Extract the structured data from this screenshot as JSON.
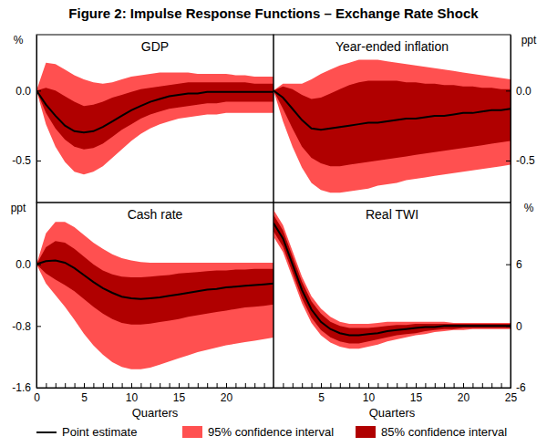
{
  "title": "Figure 2: Impulse Response Functions – Exchange Rate Shock",
  "chart_data": [
    {
      "type": "line",
      "title": "GDP",
      "ylabel": "%",
      "tick_labels": "y",
      "legend": "bottom",
      "x": [
        0,
        1,
        2,
        3,
        4,
        5,
        6,
        7,
        8,
        9,
        10,
        11,
        12,
        13,
        14,
        15,
        16,
        17,
        18,
        19,
        20,
        21,
        22,
        23,
        24,
        25
      ],
      "xlim": [
        0,
        25
      ],
      "ylim": [
        -0.8,
        0.4
      ],
      "yticks": [
        -0.5,
        {
          "value": 0,
          "label": "0.0"
        }
      ],
      "series": [
        {
          "name": "Point estimate",
          "type": "line",
          "color": "#000000",
          "values": [
            0,
            -0.1,
            -0.18,
            -0.25,
            -0.29,
            -0.3,
            -0.29,
            -0.26,
            -0.22,
            -0.18,
            -0.14,
            -0.11,
            -0.08,
            -0.06,
            -0.04,
            -0.03,
            -0.02,
            -0.02,
            -0.01,
            -0.01,
            -0.01,
            -0.01,
            -0.01,
            -0.01,
            -0.01,
            -0.01
          ]
        },
        {
          "name": "95% confidence interval",
          "type": "area",
          "color": "#ff5050",
          "lower": [
            0,
            -0.24,
            -0.4,
            -0.51,
            -0.58,
            -0.6,
            -0.58,
            -0.54,
            -0.48,
            -0.42,
            -0.36,
            -0.31,
            -0.27,
            -0.24,
            -0.22,
            -0.2,
            -0.19,
            -0.18,
            -0.17,
            -0.17,
            -0.16,
            -0.16,
            -0.16,
            -0.16,
            -0.16,
            -0.16
          ],
          "upper": [
            0,
            0.2,
            0.19,
            0.15,
            0.11,
            0.08,
            0.06,
            0.05,
            0.06,
            0.08,
            0.1,
            0.11,
            0.12,
            0.13,
            0.13,
            0.13,
            0.13,
            0.12,
            0.12,
            0.12,
            0.12,
            0.11,
            0.11,
            0.1,
            0.1,
            0.1
          ]
        },
        {
          "name": "85% confidence interval",
          "type": "area",
          "color": "#b00000",
          "lower": [
            0,
            -0.16,
            -0.27,
            -0.35,
            -0.4,
            -0.42,
            -0.41,
            -0.38,
            -0.33,
            -0.28,
            -0.24,
            -0.2,
            -0.17,
            -0.15,
            -0.13,
            -0.12,
            -0.11,
            -0.1,
            -0.09,
            -0.09,
            -0.08,
            -0.08,
            -0.08,
            -0.08,
            -0.08,
            -0.08
          ],
          "upper": [
            0,
            0.02,
            0,
            -0.04,
            -0.08,
            -0.11,
            -0.1,
            -0.08,
            -0.05,
            -0.03,
            -0.01,
            0.01,
            0.02,
            0.03,
            0.04,
            0.05,
            0.06,
            0.06,
            0.06,
            0.06,
            0.06,
            0.06,
            0.06,
            0.05,
            0.05,
            0.05
          ]
        }
      ]
    },
    {
      "type": "line",
      "title": "Year-ended inflation",
      "y2label": "ppt",
      "tick_labels": "y",
      "x": [
        0,
        1,
        2,
        3,
        4,
        5,
        6,
        7,
        8,
        9,
        10,
        11,
        12,
        13,
        14,
        15,
        16,
        17,
        18,
        19,
        20,
        21,
        22,
        23,
        24,
        25
      ],
      "xlim": [
        0,
        25
      ],
      "y2lim": [
        -0.8,
        0.4
      ],
      "y2ticks": [
        -0.5,
        {
          "value": 0,
          "label": "0.0"
        }
      ],
      "series": [
        {
          "name": "Point estimate",
          "type": "line",
          "color": "#000000",
          "axis": "y2",
          "values": [
            0,
            -0.05,
            -0.13,
            -0.21,
            -0.27,
            -0.28,
            -0.27,
            -0.26,
            -0.25,
            -0.24,
            -0.23,
            -0.23,
            -0.22,
            -0.21,
            -0.2,
            -0.2,
            -0.19,
            -0.18,
            -0.18,
            -0.17,
            -0.16,
            -0.16,
            -0.15,
            -0.14,
            -0.14,
            -0.13
          ]
        },
        {
          "name": "95% confidence interval",
          "type": "area",
          "color": "#ff5050",
          "axis": "y2",
          "lower": [
            0,
            -0.22,
            -0.4,
            -0.55,
            -0.66,
            -0.71,
            -0.73,
            -0.73,
            -0.72,
            -0.71,
            -0.7,
            -0.68,
            -0.67,
            -0.66,
            -0.64,
            -0.63,
            -0.62,
            -0.61,
            -0.6,
            -0.59,
            -0.58,
            -0.57,
            -0.56,
            -0.55,
            -0.54,
            -0.53
          ],
          "upper": [
            0,
            0.05,
            0.05,
            0.05,
            0.08,
            0.12,
            0.15,
            0.18,
            0.2,
            0.22,
            0.22,
            0.22,
            0.21,
            0.2,
            0.19,
            0.18,
            0.17,
            0.16,
            0.15,
            0.14,
            0.13,
            0.12,
            0.11,
            0.1,
            0.09,
            0.08
          ]
        },
        {
          "name": "85% confidence interval",
          "type": "area",
          "color": "#b00000",
          "axis": "y2",
          "lower": [
            0,
            -0.13,
            -0.27,
            -0.4,
            -0.48,
            -0.52,
            -0.54,
            -0.54,
            -0.53,
            -0.52,
            -0.51,
            -0.5,
            -0.49,
            -0.48,
            -0.47,
            -0.46,
            -0.45,
            -0.44,
            -0.43,
            -0.42,
            -0.41,
            -0.4,
            -0.39,
            -0.38,
            -0.37,
            -0.36
          ],
          "upper": [
            0,
            0.03,
            0.01,
            -0.03,
            -0.06,
            -0.05,
            -0.02,
            0.01,
            0.04,
            0.06,
            0.07,
            0.07,
            0.07,
            0.07,
            0.06,
            0.06,
            0.05,
            0.05,
            0.04,
            0.04,
            0.03,
            0.03,
            0.02,
            0.02,
            0.01,
            0.01
          ]
        }
      ]
    },
    {
      "type": "line",
      "title": "Cash rate",
      "ylabel": "ppt",
      "xlabel": "Quarters",
      "x": [
        0,
        1,
        2,
        3,
        4,
        5,
        6,
        7,
        8,
        9,
        10,
        11,
        12,
        13,
        14,
        15,
        16,
        17,
        18,
        19,
        20,
        21,
        22,
        23,
        24,
        25
      ],
      "xlim": [
        0,
        25
      ],
      "xticks": [
        0,
        {
          "value": 1,
          "label": null
        },
        {
          "value": 2,
          "label": null
        },
        {
          "value": 3,
          "label": null
        },
        {
          "value": 4,
          "label": null
        },
        5,
        {
          "value": 6,
          "label": null
        },
        {
          "value": 7,
          "label": null
        },
        {
          "value": 8,
          "label": null
        },
        {
          "value": 9,
          "label": null
        },
        10,
        {
          "value": 11,
          "label": null
        },
        {
          "value": 12,
          "label": null
        },
        {
          "value": 13,
          "label": null
        },
        {
          "value": 14,
          "label": null
        },
        15,
        {
          "value": 16,
          "label": null
        },
        {
          "value": 17,
          "label": null
        },
        {
          "value": 18,
          "label": null
        },
        {
          "value": 19,
          "label": null
        },
        20,
        {
          "value": 21,
          "label": null
        },
        {
          "value": 22,
          "label": null
        },
        {
          "value": 23,
          "label": null
        },
        {
          "value": 24,
          "label": null
        }
      ],
      "ylim": [
        -1.6,
        0.8
      ],
      "yticks": [
        -1.6,
        -0.8,
        {
          "value": 0,
          "label": "0.0"
        }
      ],
      "series": [
        {
          "name": "Point estimate",
          "type": "line",
          "color": "#000000",
          "values": [
            0,
            0.04,
            0.05,
            0.02,
            -0.05,
            -0.14,
            -0.23,
            -0.31,
            -0.37,
            -0.42,
            -0.44,
            -0.45,
            -0.44,
            -0.43,
            -0.41,
            -0.39,
            -0.37,
            -0.35,
            -0.33,
            -0.32,
            -0.3,
            -0.29,
            -0.28,
            -0.27,
            -0.26,
            -0.25
          ]
        },
        {
          "name": "95% confidence interval",
          "type": "area",
          "color": "#ff5050",
          "lower": [
            0,
            -0.25,
            -0.4,
            -0.55,
            -0.72,
            -0.9,
            -1.05,
            -1.17,
            -1.27,
            -1.33,
            -1.36,
            -1.36,
            -1.34,
            -1.3,
            -1.26,
            -1.22,
            -1.18,
            -1.14,
            -1.11,
            -1.08,
            -1.05,
            -1.03,
            -1.01,
            -0.99,
            -0.97,
            -0.95
          ],
          "upper": [
            0,
            0.4,
            0.55,
            0.55,
            0.48,
            0.38,
            0.28,
            0.2,
            0.13,
            0.08,
            0.05,
            0.03,
            0.02,
            0.02,
            0.02,
            0.02,
            0.02,
            0.02,
            0.02,
            0.02,
            0.02,
            0.02,
            0.02,
            0.02,
            0.02,
            0.02
          ]
        },
        {
          "name": "85% confidence interval",
          "type": "area",
          "color": "#b00000",
          "lower": [
            0,
            -0.12,
            -0.2,
            -0.27,
            -0.35,
            -0.45,
            -0.55,
            -0.64,
            -0.71,
            -0.76,
            -0.78,
            -0.78,
            -0.77,
            -0.75,
            -0.73,
            -0.71,
            -0.68,
            -0.66,
            -0.64,
            -0.62,
            -0.6,
            -0.58,
            -0.56,
            -0.55,
            -0.54,
            -0.52
          ],
          "upper": [
            0,
            0.22,
            0.3,
            0.28,
            0.2,
            0.1,
            0,
            -0.08,
            -0.13,
            -0.16,
            -0.17,
            -0.17,
            -0.16,
            -0.15,
            -0.14,
            -0.12,
            -0.11,
            -0.1,
            -0.09,
            -0.08,
            -0.08,
            -0.07,
            -0.07,
            -0.06,
            -0.06,
            -0.06
          ]
        }
      ]
    },
    {
      "type": "line",
      "title": "Real TWI",
      "y2label": "%",
      "xlabel": "Quarters",
      "x": [
        0,
        1,
        2,
        3,
        4,
        5,
        6,
        7,
        8,
        9,
        10,
        11,
        12,
        13,
        14,
        15,
        16,
        17,
        18,
        19,
        20,
        21,
        22,
        23,
        24,
        25
      ],
      "xlim": [
        0,
        25
      ],
      "xticks": [
        {
          "value": 1,
          "label": null
        },
        {
          "value": 2,
          "label": null
        },
        {
          "value": 3,
          "label": null
        },
        {
          "value": 4,
          "label": null
        },
        5,
        {
          "value": 6,
          "label": null
        },
        {
          "value": 7,
          "label": null
        },
        {
          "value": 8,
          "label": null
        },
        {
          "value": 9,
          "label": null
        },
        10,
        {
          "value": 11,
          "label": null
        },
        {
          "value": 12,
          "label": null
        },
        {
          "value": 13,
          "label": null
        },
        {
          "value": 14,
          "label": null
        },
        15,
        {
          "value": 16,
          "label": null
        },
        {
          "value": 17,
          "label": null
        },
        {
          "value": 18,
          "label": null
        },
        {
          "value": 19,
          "label": null
        },
        20,
        {
          "value": 21,
          "label": null
        },
        {
          "value": 22,
          "label": null
        },
        {
          "value": 23,
          "label": null
        },
        {
          "value": 24,
          "label": null
        },
        25
      ],
      "y2lim": [
        -6,
        12
      ],
      "y2ticks": [
        -6,
        0,
        6
      ],
      "series": [
        {
          "name": "Point estimate",
          "type": "line",
          "color": "#000000",
          "axis": "y2",
          "values": [
            10,
            8.5,
            6,
            3.5,
            1.6,
            0.4,
            -0.3,
            -0.7,
            -0.9,
            -0.9,
            -0.8,
            -0.7,
            -0.5,
            -0.4,
            -0.3,
            -0.2,
            -0.1,
            -0.1,
            0,
            0,
            0,
            0,
            0,
            0,
            0,
            0
          ]
        },
        {
          "name": "95% confidence interval",
          "type": "area",
          "color": "#ff5050",
          "axis": "y2",
          "lower": [
            8.7,
            7.2,
            4.7,
            2.2,
            0.3,
            -0.9,
            -1.6,
            -2,
            -2.2,
            -2.2,
            -2,
            -1.8,
            -1.5,
            -1.3,
            -1.1,
            -0.9,
            -0.8,
            -0.6,
            -0.5,
            -0.4,
            -0.4,
            -0.3,
            -0.3,
            -0.3,
            -0.3,
            -0.3
          ],
          "upper": [
            11.3,
            9.8,
            7.3,
            4.8,
            2.9,
            1.7,
            0.9,
            0.4,
            0.2,
            0.2,
            0.2,
            0.3,
            0.4,
            0.4,
            0.4,
            0.4,
            0.4,
            0.4,
            0.4,
            0.3,
            0.3,
            0.3,
            0.3,
            0.3,
            0.3,
            0.3
          ]
        },
        {
          "name": "85% confidence interval",
          "type": "area",
          "color": "#b00000",
          "axis": "y2",
          "lower": [
            9.2,
            7.7,
            5.2,
            2.7,
            0.8,
            -0.4,
            -1.1,
            -1.5,
            -1.7,
            -1.7,
            -1.5,
            -1.3,
            -1.1,
            -0.9,
            -0.8,
            -0.7,
            -0.5,
            -0.4,
            -0.3,
            -0.3,
            -0.2,
            -0.2,
            -0.2,
            -0.2,
            -0.2,
            -0.2
          ],
          "upper": [
            10.8,
            9.3,
            6.8,
            4.3,
            2.4,
            1.2,
            0.4,
            0,
            -0.2,
            -0.2,
            -0.2,
            -0.1,
            0,
            0.1,
            0.1,
            0.2,
            0.2,
            0.2,
            0.2,
            0.2,
            0.2,
            0.2,
            0.2,
            0.2,
            0.2,
            0.2
          ]
        }
      ]
    }
  ]
}
